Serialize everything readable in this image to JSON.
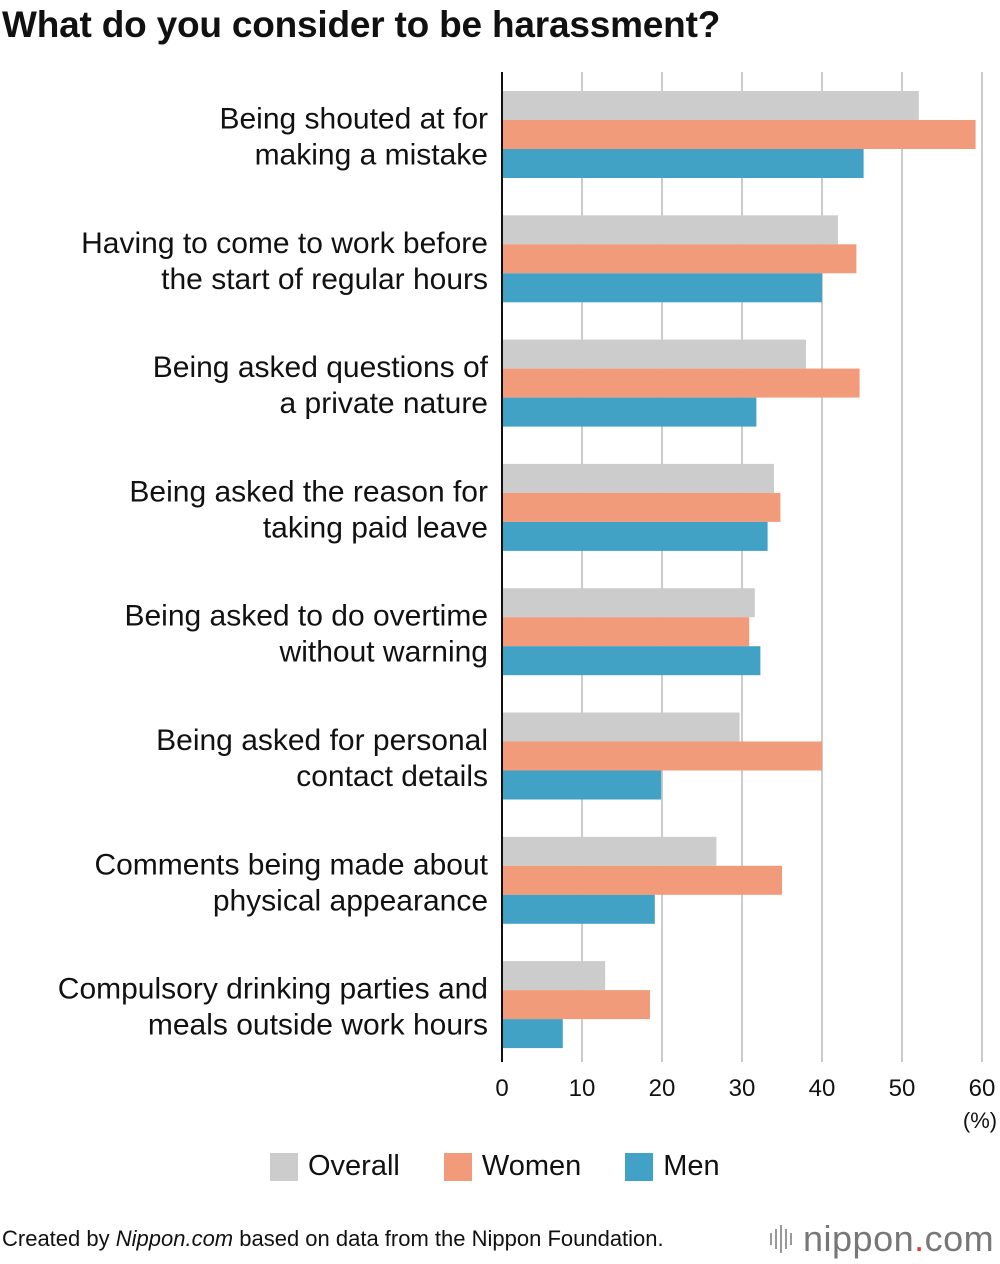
{
  "title": "What do you consider to be harassment?",
  "colors": {
    "overall": "#cccccc",
    "women": "#f29b7b",
    "men": "#41a2c6",
    "grid": "#cccccc",
    "axis": "#111111"
  },
  "chart_data": {
    "type": "bar",
    "orientation": "horizontal",
    "title": "What do you consider to be harassment?",
    "categories": [
      [
        "Being shouted at for",
        "making a mistake"
      ],
      [
        "Having to come to work before",
        "the start of regular hours"
      ],
      [
        "Being asked questions of",
        "a private nature"
      ],
      [
        "Being asked the reason for",
        "taking paid leave"
      ],
      [
        "Being asked to do overtime",
        "without warning"
      ],
      [
        "Being asked for personal",
        "contact details"
      ],
      [
        "Comments being made about",
        "physical appearance"
      ],
      [
        "Compulsory drinking parties and",
        "meals outside work hours"
      ]
    ],
    "series": [
      {
        "name": "Overall",
        "values": [
          52.1,
          42.0,
          38.0,
          34.0,
          31.6,
          29.7,
          26.8,
          12.9
        ]
      },
      {
        "name": "Women",
        "values": [
          59.2,
          44.3,
          44.7,
          34.8,
          30.9,
          40.0,
          35.0,
          18.5
        ]
      },
      {
        "name": "Men",
        "values": [
          45.2,
          40.0,
          31.8,
          33.2,
          32.3,
          19.9,
          19.1,
          7.6
        ]
      }
    ],
    "xlim": [
      0,
      60
    ],
    "xticks": [
      0,
      10,
      20,
      30,
      40,
      50,
      60
    ],
    "unit": "(%)",
    "grid": "vertical",
    "legend_position": "bottom"
  },
  "legend": [
    {
      "label": "Overall",
      "color": "#cccccc"
    },
    {
      "label": "Women",
      "color": "#f29b7b"
    },
    {
      "label": "Men",
      "color": "#41a2c6"
    }
  ],
  "footer": {
    "prefix": "Created by ",
    "source": "Nippon.com",
    "suffix": " based on data from the Nippon Foundation."
  },
  "logo": {
    "name": "nippon",
    "dot": ".",
    "tld": "com"
  }
}
